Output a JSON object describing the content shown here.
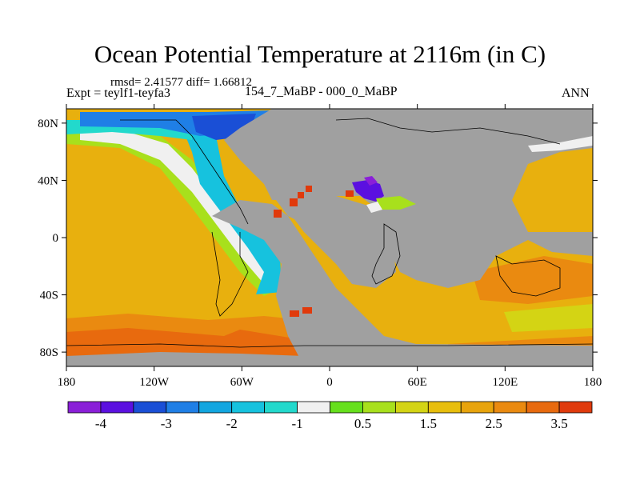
{
  "title": "Ocean Potential Temperature at 2116m (in C)",
  "stats": "rmsd= 2.41577 diff= 1.66812",
  "expt": "Expt = teylf1-teyfa3",
  "subtitle": "154_7_MaBP - 000_0_MaBP",
  "season": "ANN",
  "axes": {
    "x_ticks": [
      "180",
      "120W",
      "60W",
      "0",
      "60E",
      "120E",
      "180"
    ],
    "y_ticks": [
      "80N",
      "40N",
      "0",
      "40S",
      "80S"
    ]
  },
  "colorbar": {
    "colors": [
      "#8a1fd8",
      "#5b10e0",
      "#1a4fd6",
      "#1f7fe6",
      "#12a6e0",
      "#16c2de",
      "#22d9cc",
      "#f0f0f0",
      "#66e01c",
      "#a8e01c",
      "#d4d414",
      "#e8be0c",
      "#e8a40c",
      "#ea8a10",
      "#e86a0e",
      "#e03a0c"
    ],
    "labels": [
      "-4",
      "-3",
      "-2",
      "-1",
      "0.5",
      "1.5",
      "2.5",
      "3.5"
    ]
  },
  "colors": {
    "land": "#a0a0a0",
    "ocean_warm": "#e8b00e",
    "ocean_orange": "#ea8a10",
    "ocean_red": "#e86a0e"
  }
}
